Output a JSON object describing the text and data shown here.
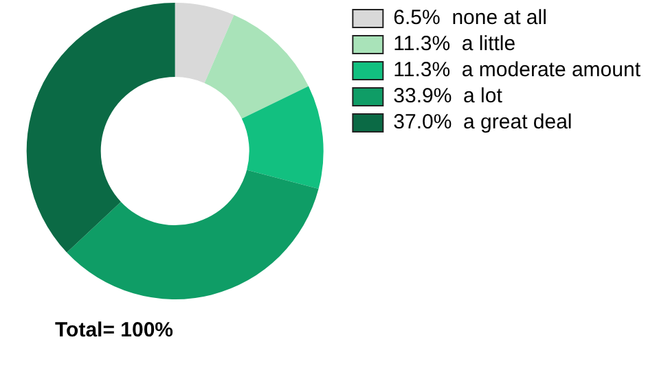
{
  "chart_data": {
    "type": "donut",
    "categories": [
      "6.5%  none at all",
      "11.3%  a little",
      "11.3%  a moderate amount",
      "33.9%  a lot",
      "37.0%  a great deal"
    ],
    "values": [
      6.5,
      11.3,
      11.3,
      33.9,
      37.0
    ],
    "colors": [
      "#d9d9d9",
      "#a9e3b9",
      "#12c080",
      "#0f9d66",
      "#0b6a45"
    ],
    "legend": "top right",
    "annotations": [
      "Total= 100%"
    ]
  }
}
